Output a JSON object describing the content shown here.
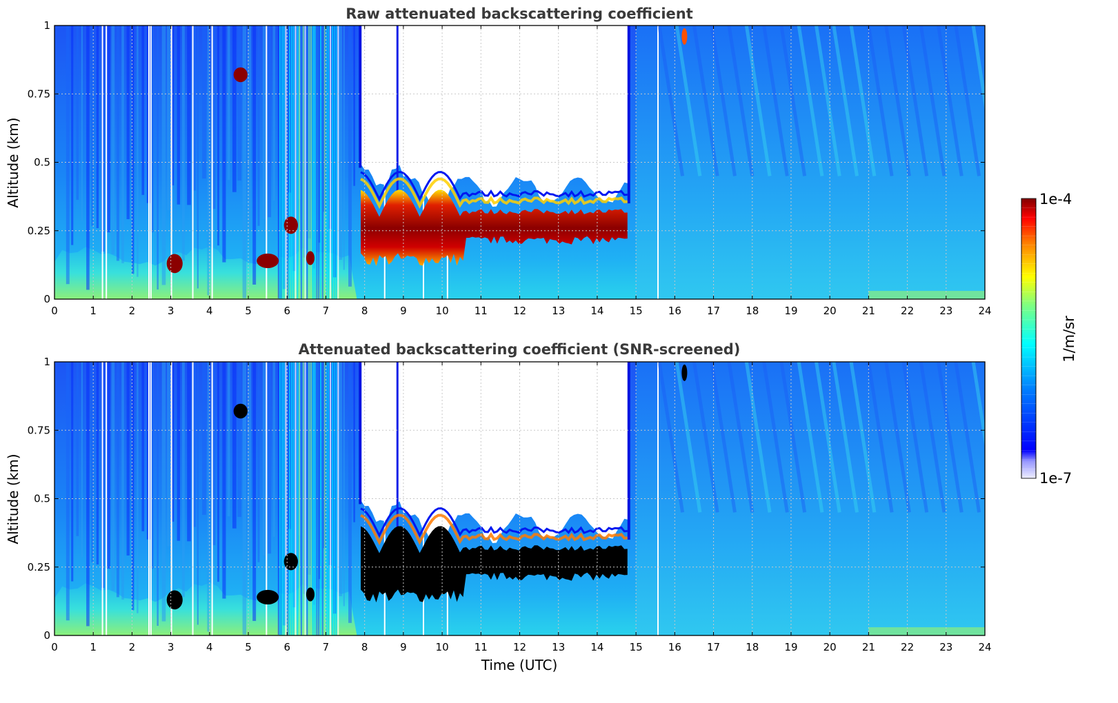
{
  "chart_data": [
    {
      "type": "heatmap",
      "title": "Raw attenuated backscattering coefficient",
      "xlabel": "",
      "ylabel": "Altitude (km)",
      "xlim": [
        0,
        24
      ],
      "ylim": [
        0,
        1
      ],
      "xticks": [
        "0",
        "1",
        "2",
        "3",
        "4",
        "5",
        "6",
        "7",
        "8",
        "9",
        "10",
        "11",
        "12",
        "13",
        "14",
        "15",
        "16",
        "17",
        "18",
        "19",
        "20",
        "21",
        "22",
        "23",
        "24"
      ],
      "yticks": [
        "0",
        "0.25",
        "0.5",
        "0.75",
        "1"
      ],
      "grid": true,
      "screened": false,
      "regions": [
        {
          "feature": "aerosol layer",
          "t_start": 0.0,
          "t_end": 7.8,
          "z_top": 0.17
        },
        {
          "feature": "cloud layer",
          "t_start": 7.9,
          "t_end": 10.6,
          "z_base": 0.12,
          "z_top": 0.42
        },
        {
          "feature": "cloud layer",
          "t_start": 10.6,
          "t_end": 14.8,
          "z_base": 0.2,
          "z_top": 0.33
        },
        {
          "feature": "no signal above cloud",
          "t_start": 7.9,
          "t_end": 14.8,
          "z_base": 0.35,
          "z_top": 1.0
        },
        {
          "feature": "mixed clear/cloud",
          "t_start": 15.0,
          "t_end": 24.0,
          "z_top": 1.0
        }
      ]
    },
    {
      "type": "heatmap",
      "title": "Attenuated backscattering coefficient (SNR-screened)",
      "xlabel": "Time (UTC)",
      "ylabel": "Altitude (km)",
      "xlim": [
        0,
        24
      ],
      "ylim": [
        0,
        1
      ],
      "xticks": [
        "0",
        "1",
        "2",
        "3",
        "4",
        "5",
        "6",
        "7",
        "8",
        "9",
        "10",
        "11",
        "12",
        "13",
        "14",
        "15",
        "16",
        "17",
        "18",
        "19",
        "20",
        "21",
        "22",
        "23",
        "24"
      ],
      "yticks": [
        "0",
        "0.25",
        "0.5",
        "0.75",
        "1"
      ],
      "grid": true,
      "screened": true,
      "regions": [
        {
          "feature": "aerosol layer",
          "t_start": 0.0,
          "t_end": 7.8,
          "z_top": 0.17
        },
        {
          "feature": "cloud layer (screened, black)",
          "t_start": 7.9,
          "t_end": 14.8,
          "z_base": 0.12,
          "z_top": 0.33
        },
        {
          "feature": "no signal above cloud",
          "t_start": 7.9,
          "t_end": 14.8,
          "z_base": 0.35,
          "z_top": 1.0
        }
      ]
    }
  ],
  "colorbar": {
    "label": "1/m/sr",
    "max_label": "1e-4",
    "min_label": "1e-7",
    "colormap": "jet",
    "scale": "log",
    "range": [
      1e-07,
      0.0001
    ]
  },
  "colors": {
    "background_blue": "#1e5dfa",
    "aerosol_cyan": "#2fd7ee",
    "strong_return": "#8b0000",
    "screened": "#000000",
    "grid": "#c8c8c8",
    "title_text": "#3a3a3a"
  }
}
